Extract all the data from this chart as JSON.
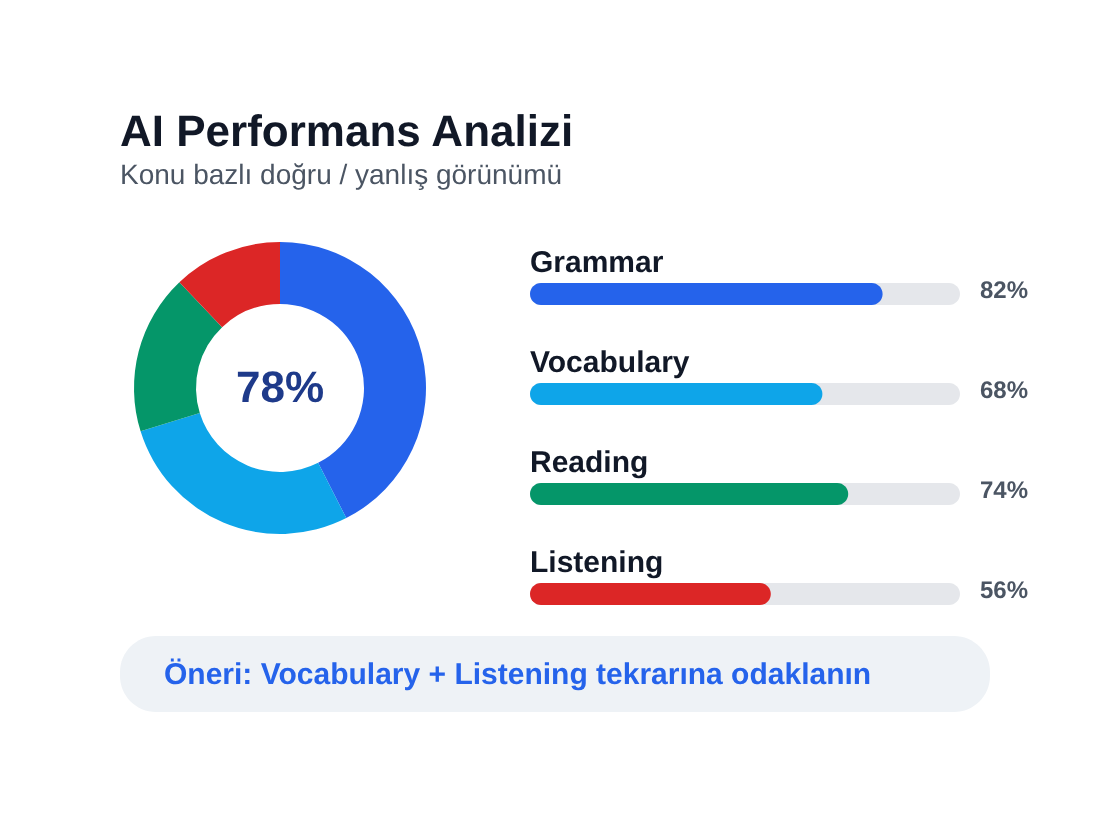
{
  "chart_data": [
    {
      "type": "donut",
      "title": "AI Performans Analizi",
      "subtitle": "Konu bazlı doğru / yanlış görünümü",
      "categories": [
        null,
        null,
        null,
        null
      ],
      "values": [
        42.5,
        27.7,
        17.7,
        12.1
      ],
      "colors": [
        "#2563eb",
        "#0ea5e9",
        "#059669",
        "#dc2626"
      ],
      "annotations": [
        "78%"
      ],
      "legend": false
    },
    {
      "type": "bar",
      "orientation": "horizontal",
      "categories": [
        "Grammar",
        "Vocabulary",
        "Reading",
        "Listening"
      ],
      "values": [
        82,
        68,
        74,
        56
      ],
      "colors": [
        "#2563eb",
        "#0ea5e9",
        "#059669",
        "#dc2626"
      ],
      "xlim": [
        0,
        100
      ],
      "value_labels": [
        "82%",
        "68%",
        "74%",
        "56%"
      ],
      "tick_labels": false,
      "annotations": [
        "Öneri: Vocabulary + Listening tekrarına odaklanın"
      ]
    }
  ]
}
